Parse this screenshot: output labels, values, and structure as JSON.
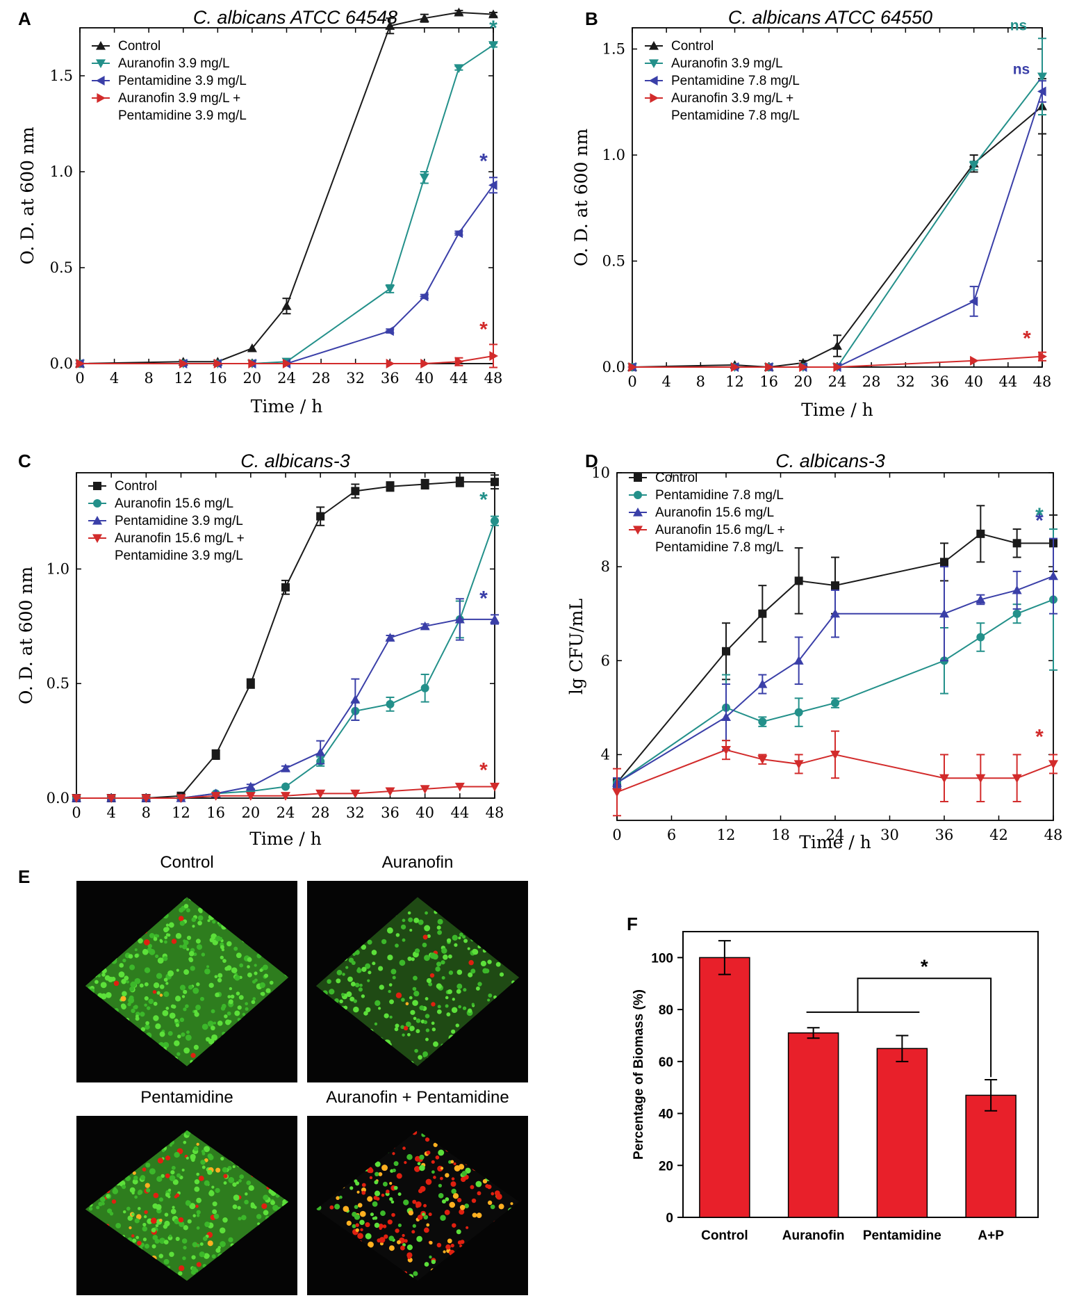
{
  "figure": {
    "panel_letters": [
      "A",
      "B",
      "C",
      "D",
      "E",
      "F"
    ]
  },
  "chart_data": [
    {
      "panel": "A",
      "type": "line",
      "title": "C. albicans ATCC 64548",
      "xlabel": "Time / h",
      "ylabel": "O. D. at 600 nm",
      "xlim": [
        0,
        48
      ],
      "ylim": [
        0,
        1.75
      ],
      "x_ticks": [
        "0",
        "4",
        "8",
        "12",
        "16",
        "20",
        "24",
        "28",
        "32",
        "36",
        "40",
        "44",
        "48"
      ],
      "y_ticks": [
        "0.0",
        "0.5",
        "1.0",
        "1.5"
      ],
      "x": [
        0,
        12,
        16,
        20,
        24,
        36,
        40,
        44,
        48
      ],
      "series": [
        {
          "name": "Control",
          "color": "#1a1a1a",
          "marker": "triangle-up",
          "values": [
            0.0,
            0.01,
            0.01,
            0.08,
            0.3,
            1.76,
            1.8,
            1.83,
            1.82
          ],
          "errors": [
            0,
            0,
            0,
            0,
            0.04,
            0.04,
            0.02,
            0.01,
            0.01
          ]
        },
        {
          "name": "Auranofin 3.9 mg/L",
          "color": "#23908a",
          "marker": "triangle-down",
          "values": [
            0.0,
            0.0,
            0.0,
            0.0,
            0.01,
            0.39,
            0.97,
            1.54,
            1.66
          ],
          "errors": [
            0,
            0,
            0,
            0,
            0,
            0.02,
            0.03,
            0.01,
            0.01
          ]
        },
        {
          "name": "Pentamidine 3.9 mg/L",
          "color": "#3a3fa8",
          "marker": "triangle-left",
          "values": [
            0.0,
            0.0,
            0.0,
            0.0,
            0.0,
            0.17,
            0.35,
            0.68,
            0.93
          ],
          "errors": [
            0,
            0,
            0,
            0,
            0,
            0.01,
            0.01,
            0.01,
            0.04
          ]
        },
        {
          "name": "Auranofin 3.9 mg/L + Pentamidine 3.9 mg/L",
          "legend_lines": [
            "Auranofin 3.9 mg/L +",
            "Pentamidine 3.9 mg/L"
          ],
          "color": "#d22b2b",
          "marker": "triangle-right",
          "values": [
            0.0,
            0.0,
            0.0,
            0.0,
            0.0,
            0.0,
            0.0,
            0.01,
            0.04
          ],
          "errors": [
            0,
            0,
            0,
            0,
            0,
            0,
            0,
            0.02,
            0.06
          ]
        }
      ],
      "annotations": [
        {
          "text": "*",
          "series": 1
        },
        {
          "text": "*",
          "series": 2
        },
        {
          "text": "*",
          "series": 3
        }
      ]
    },
    {
      "panel": "B",
      "type": "line",
      "title": "C. albicans ATCC 64550",
      "xlabel": "Time / h",
      "ylabel": "O. D. at 600 nm",
      "xlim": [
        0,
        48
      ],
      "ylim": [
        0,
        1.6
      ],
      "x_ticks": [
        "0",
        "4",
        "8",
        "12",
        "16",
        "20",
        "24",
        "28",
        "32",
        "36",
        "40",
        "44",
        "48"
      ],
      "y_ticks": [
        "0.0",
        "0.5",
        "1.0",
        "1.5"
      ],
      "x": [
        0,
        12,
        16,
        20,
        24,
        40,
        48
      ],
      "series": [
        {
          "name": "Control",
          "color": "#1a1a1a",
          "marker": "triangle-up",
          "values": [
            0.0,
            0.01,
            0.0,
            0.02,
            0.1,
            0.96,
            1.23
          ],
          "errors": [
            0,
            0,
            0,
            0.01,
            0.05,
            0.04,
            0.13
          ]
        },
        {
          "name": "Auranofin 3.9 mg/L",
          "color": "#23908a",
          "marker": "triangle-down",
          "values": [
            0.0,
            0.0,
            0.0,
            0.0,
            0.0,
            0.95,
            1.37
          ],
          "errors": [
            0,
            0,
            0,
            0,
            0,
            0.02,
            0.18
          ]
        },
        {
          "name": "Pentamidine 7.8 mg/L",
          "color": "#3a3fa8",
          "marker": "triangle-left",
          "values": [
            0.0,
            0.0,
            0.0,
            0.0,
            0.0,
            0.31,
            1.3
          ],
          "errors": [
            0,
            0,
            0,
            0,
            0,
            0.07,
            0.05
          ]
        },
        {
          "name": "Auranofin 3.9 mg/L + Pentamidine 7.8 mg/L",
          "legend_lines": [
            "Auranofin 3.9 mg/L +",
            "Pentamidine 7.8 mg/L"
          ],
          "color": "#d22b2b",
          "marker": "triangle-right",
          "values": [
            0.0,
            0.0,
            0.0,
            0.0,
            0.0,
            0.03,
            0.05
          ],
          "errors": [
            0,
            0,
            0,
            0,
            0,
            0,
            0.02
          ]
        }
      ],
      "annotations": [
        {
          "text": "ns",
          "series": 1
        },
        {
          "text": "ns",
          "series": 2
        },
        {
          "text": "*",
          "series": 3
        }
      ]
    },
    {
      "panel": "C",
      "type": "line",
      "title": "C. albicans-3",
      "xlabel": "Time / h",
      "ylabel": "O. D. at 600 nm",
      "xlim": [
        0,
        48
      ],
      "ylim": [
        0,
        1.42
      ],
      "x_ticks": [
        "0",
        "4",
        "8",
        "12",
        "16",
        "20",
        "24",
        "28",
        "32",
        "36",
        "40",
        "44",
        "48"
      ],
      "y_ticks": [
        "0.0",
        "0.5",
        "1.0"
      ],
      "x": [
        0,
        4,
        8,
        12,
        16,
        20,
        24,
        28,
        32,
        36,
        40,
        44,
        48
      ],
      "series": [
        {
          "name": "Control",
          "color": "#1a1a1a",
          "marker": "square",
          "values": [
            0.0,
            0.0,
            0.0,
            0.01,
            0.19,
            0.5,
            0.92,
            1.23,
            1.34,
            1.36,
            1.37,
            1.38,
            1.38
          ],
          "errors": [
            0,
            0,
            0,
            0,
            0.02,
            0.02,
            0.03,
            0.04,
            0.03,
            0.02,
            0.02,
            0.02,
            0.03
          ]
        },
        {
          "name": "Auranofin 15.6 mg/L",
          "color": "#23908a",
          "marker": "circle",
          "values": [
            0.0,
            0.0,
            0.0,
            0.0,
            0.02,
            0.03,
            0.05,
            0.16,
            0.38,
            0.41,
            0.48,
            0.78,
            1.21
          ],
          "errors": [
            0,
            0,
            0,
            0,
            0,
            0,
            0,
            0.02,
            0.04,
            0.03,
            0.06,
            0.08,
            0.02
          ]
        },
        {
          "name": "Pentamidine 3.9 mg/L",
          "color": "#3a3fa8",
          "marker": "triangle-up",
          "values": [
            0.0,
            0.0,
            0.0,
            0.0,
            0.02,
            0.05,
            0.13,
            0.2,
            0.43,
            0.7,
            0.75,
            0.78,
            0.78
          ],
          "errors": [
            0,
            0,
            0,
            0,
            0,
            0.01,
            0.01,
            0.05,
            0.09,
            0.01,
            0.01,
            0.09,
            0.02
          ]
        },
        {
          "name": "Auranofin 15.6 mg/L + Pentamidine 3.9 mg/L",
          "legend_lines": [
            "Auranofin 15.6 mg/L +",
            "Pentamidine 3.9 mg/L"
          ],
          "color": "#d22b2b",
          "marker": "triangle-down",
          "values": [
            0.0,
            0.0,
            0.0,
            0.0,
            0.01,
            0.01,
            0.01,
            0.02,
            0.02,
            0.03,
            0.04,
            0.05,
            0.05
          ],
          "errors": [
            0,
            0,
            0,
            0,
            0,
            0,
            0,
            0,
            0,
            0,
            0,
            0,
            0
          ]
        }
      ],
      "annotations": [
        {
          "text": "*",
          "series": 1
        },
        {
          "text": "*",
          "series": 2
        },
        {
          "text": "*",
          "series": 3
        }
      ]
    },
    {
      "panel": "D",
      "type": "line",
      "title": "C. albicans-3",
      "xlabel": "Time / h",
      "ylabel": "lg CFU/mL",
      "xlim": [
        0,
        48
      ],
      "ylim": [
        2.6,
        10
      ],
      "x_ticks": [
        "0",
        "6",
        "12",
        "18",
        "24",
        "30",
        "36",
        "42",
        "48"
      ],
      "y_ticks": [
        "4",
        "6",
        "8",
        "10"
      ],
      "x": [
        0,
        12,
        16,
        20,
        24,
        36,
        40,
        44,
        48
      ],
      "series": [
        {
          "name": "Control",
          "color": "#1a1a1a",
          "marker": "square",
          "values": [
            3.4,
            6.2,
            7.0,
            7.7,
            7.6,
            8.1,
            8.7,
            8.5,
            8.5
          ],
          "errors": [
            0.1,
            0.6,
            0.6,
            0.7,
            0.6,
            0.4,
            0.6,
            0.3,
            0.6
          ]
        },
        {
          "name": "Pentamidine 7.8 mg/L",
          "color": "#23908a",
          "marker": "circle",
          "values": [
            3.4,
            5.0,
            4.7,
            4.9,
            5.1,
            6.0,
            6.5,
            7.0,
            7.3
          ],
          "errors": [
            0.1,
            0.7,
            0.1,
            0.3,
            0.1,
            0.7,
            0.3,
            0.2,
            1.5
          ]
        },
        {
          "name": "Auranofin 15.6 mg/L",
          "color": "#3a3fa8",
          "marker": "triangle-up",
          "values": [
            3.4,
            4.8,
            5.5,
            6.0,
            7.0,
            7.0,
            7.3,
            7.5,
            7.8
          ],
          "errors": [
            0.1,
            0.7,
            0.2,
            0.5,
            0.5,
            1.0,
            0.1,
            0.4,
            0.8
          ]
        },
        {
          "name": "Auranofin 15.6 mg/L + Pentamidine 7.8 mg/L",
          "legend_lines": [
            "Auranofin 15.6 mg/L +",
            "Pentamidine 7.8 mg/L"
          ],
          "color": "#d22b2b",
          "marker": "triangle-down",
          "values": [
            3.2,
            4.1,
            3.9,
            3.8,
            4.0,
            3.5,
            3.5,
            3.5,
            3.8
          ],
          "errors": [
            0.5,
            0.2,
            0.1,
            0.2,
            0.5,
            0.5,
            0.5,
            0.5,
            0.2
          ]
        }
      ],
      "annotations": [
        {
          "text": "*",
          "series": 2
        },
        {
          "text": "*",
          "series": 1
        },
        {
          "text": "*",
          "series": 3
        }
      ]
    },
    {
      "panel": "F",
      "type": "bar",
      "title": "",
      "xlabel": "",
      "ylabel": "Percentage of Biomass (%)",
      "ylim": [
        0,
        110
      ],
      "y_ticks": [
        "0",
        "20",
        "40",
        "60",
        "80",
        "100"
      ],
      "categories": [
        "Control",
        "Auranofin",
        "Pentamidine",
        "A+P"
      ],
      "values": [
        100,
        71,
        65,
        47
      ],
      "errors": [
        6.5,
        2,
        5,
        6
      ],
      "bar_color": "#e8202a",
      "annotation": "*"
    }
  ],
  "panel_e": {
    "images": [
      {
        "label": "Control",
        "red_fraction": 0.02,
        "green_fraction": 0.95
      },
      {
        "label": "Auranofin",
        "red_fraction": 0.03,
        "green_fraction": 0.7
      },
      {
        "label": "Pentamidine",
        "red_fraction": 0.2,
        "green_fraction": 0.75
      },
      {
        "label": "Auranofin + Pentamidine",
        "red_fraction": 0.5,
        "green_fraction": 0.25
      }
    ]
  }
}
